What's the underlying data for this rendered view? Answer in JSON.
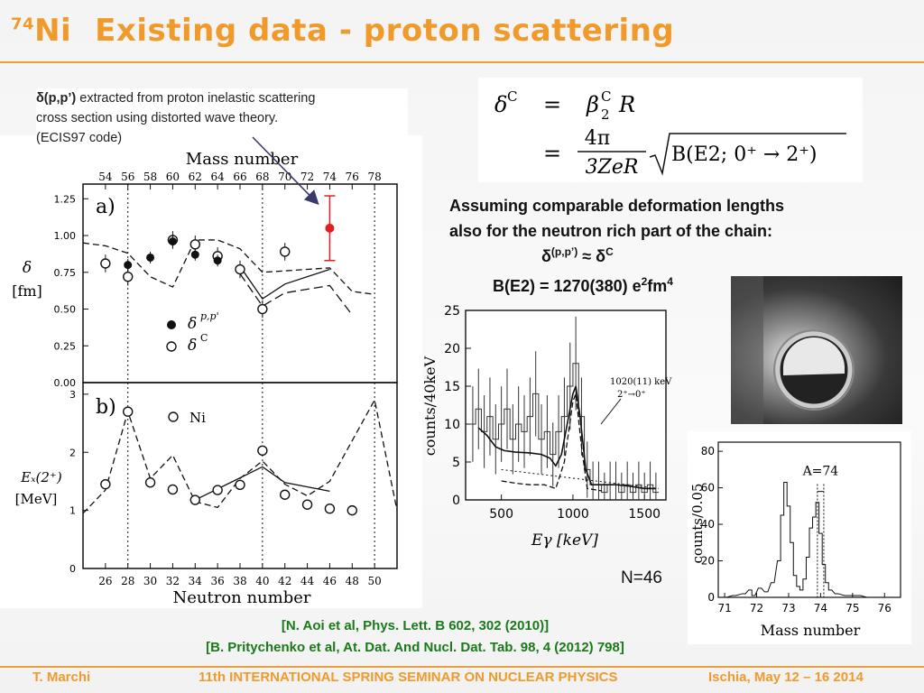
{
  "title": {
    "superscript": "74",
    "element": "Ni",
    "text": "Existing data - proton scattering"
  },
  "intro": {
    "bold": "δ(p,p’)",
    "line1": " extracted from  proton inelastic scattering",
    "line2": "cross section using distorted wave theory.",
    "line3": "(ECIS97 code)"
  },
  "formula": {
    "lhs": "δ",
    "lhs_sup": "C",
    "eq": "=",
    "rhs1": "β",
    "rhs1_sup": "C",
    "rhs1_sub": "2",
    "rhs1_tail": "R",
    "frac_num": "4π",
    "frac_den": "3ZeR",
    "sqrt_body": "B(E2; 0⁺ → 2⁺)"
  },
  "assumption": {
    "line1": "Assuming comparable deformation lengths",
    "line2": "also for the neutron rich part of the chain:",
    "approx_lhs": "δ",
    "approx_lhs_sup": "(p,p’)",
    "approx_sym": "≈",
    "approx_rhs": "δ",
    "approx_rhs_sup": "C"
  },
  "be2": {
    "text": "B(E2) = 1270(380) e",
    "sup1": "2",
    "mid": "fm",
    "sup2": "4"
  },
  "n46_label": "N=46",
  "references": [
    "[N. Aoi et al, Phys. Lett. B 602, 302 (2010)]",
    "[B. Pritychenko et al, At. Dat. And  Nucl. Dat. Tab. 98, 4 (2012) 798]"
  ],
  "footer": {
    "author": "T. Marchi",
    "event": "11th INTERNATIONAL SPRING SEMINAR ON NUCLEAR  PHYSICS",
    "place": "Ischia, May 12 – 16 2014"
  },
  "colors": {
    "accent": "#ef9a2a",
    "refs": "#1a7a1a",
    "highlight": "#e02020"
  },
  "chart_data": [
    {
      "type": "scatter",
      "panel": "a)",
      "top_axis_label": "Mass number",
      "top_ticks": [
        "54",
        "56",
        "58",
        "60",
        "62",
        "64",
        "66",
        "68",
        "70",
        "72",
        "74",
        "76",
        "78"
      ],
      "ylabel": "δ [fm]",
      "yticks": [
        "1.25",
        "1.00",
        "0.75",
        "0.50",
        "0.25",
        "0.00"
      ],
      "ylim": [
        0,
        1.35
      ],
      "xlim": [
        24,
        52
      ],
      "legend": [
        {
          "symbol": "filled",
          "label": "δ",
          "sup": "p,p'"
        },
        {
          "symbol": "open",
          "label": "δ",
          "sup": "C"
        }
      ],
      "series": [
        {
          "name": "δ p,p'",
          "points": [
            [
              28,
              0.8
            ],
            [
              30,
              0.85
            ],
            [
              32,
              0.96
            ],
            [
              34,
              0.87
            ],
            [
              36,
              0.83
            ]
          ]
        },
        {
          "name": "δ C",
          "points": [
            [
              26,
              0.81
            ],
            [
              28,
              0.72
            ],
            [
              32,
              0.97
            ],
            [
              34,
              0.94
            ],
            [
              36,
              0.86
            ],
            [
              38,
              0.77
            ],
            [
              40,
              0.5
            ],
            [
              42,
              0.89
            ]
          ]
        },
        {
          "name": "74Ni",
          "points": [
            [
              46,
              1.05
            ]
          ],
          "err": 0.22
        }
      ],
      "lines": {
        "solid": [
          [
            38,
            0.79
          ],
          [
            40,
            0.57
          ],
          [
            42,
            0.67
          ],
          [
            46,
            0.77
          ]
        ],
        "dashed": [
          [
            24,
            0.95
          ],
          [
            26,
            0.93
          ],
          [
            28,
            0.88
          ],
          [
            30,
            0.72
          ],
          [
            32,
            0.65
          ],
          [
            34,
            0.97
          ],
          [
            36,
            0.97
          ],
          [
            38,
            0.91
          ],
          [
            40,
            0.75
          ],
          [
            42,
            0.76
          ],
          [
            46,
            0.78
          ],
          [
            48,
            0.62
          ],
          [
            50,
            0.6
          ]
        ],
        "dashed2": [
          [
            38,
            0.74
          ],
          [
            40,
            0.52
          ],
          [
            42,
            0.61
          ],
          [
            46,
            0.66
          ],
          [
            48,
            0.46
          ]
        ]
      }
    },
    {
      "type": "scatter",
      "panel": "b)",
      "xlabel": "Neutron number",
      "xticks": [
        "26",
        "28",
        "30",
        "32",
        "34",
        "36",
        "38",
        "40",
        "42",
        "44",
        "46",
        "48",
        "50"
      ],
      "ylabel": "Eₓ(2⁺) [MeV]",
      "yticks": [
        "3",
        "2",
        "1",
        "0"
      ],
      "ylim": [
        0,
        3.2
      ],
      "xlim": [
        24,
        52
      ],
      "legend": [
        {
          "symbol": "open",
          "label": "Ni"
        }
      ],
      "series": [
        {
          "name": "Ni",
          "points": [
            [
              26,
              1.45
            ],
            [
              28,
              2.7
            ],
            [
              30,
              1.48
            ],
            [
              32,
              1.36
            ],
            [
              34,
              1.18
            ],
            [
              36,
              1.35
            ],
            [
              38,
              1.44
            ],
            [
              40,
              2.03
            ],
            [
              42,
              1.27
            ],
            [
              44,
              1.1
            ],
            [
              46,
              1.03
            ],
            [
              48,
              1.0
            ]
          ]
        }
      ],
      "lines": {
        "solid": [
          [
            34,
            1.18
          ],
          [
            40,
            1.75
          ],
          [
            42,
            1.48
          ],
          [
            46,
            1.33
          ]
        ],
        "dashed": [
          [
            24,
            0.95
          ],
          [
            26,
            1.35
          ],
          [
            28,
            2.7
          ],
          [
            30,
            1.55
          ],
          [
            32,
            1.95
          ],
          [
            34,
            1.15
          ],
          [
            36,
            1.05
          ],
          [
            38,
            1.55
          ],
          [
            40,
            1.85
          ],
          [
            42,
            1.45
          ],
          [
            44,
            1.25
          ],
          [
            46,
            1.5
          ],
          [
            50,
            2.9
          ],
          [
            52,
            1.0
          ]
        ]
      }
    },
    {
      "type": "line",
      "title": "",
      "xlabel": "E_γ [keV]",
      "ylabel": "counts/40keV",
      "xticks": [
        "500",
        "1000",
        "1500"
      ],
      "yticks": [
        "0",
        "5",
        "10",
        "15",
        "20",
        "25"
      ],
      "xlim": [
        250,
        1650
      ],
      "ylim": [
        0,
        25
      ],
      "annotation": {
        "line1": "1020(11) keV",
        "line2": "2⁺→0⁺"
      },
      "spectrum": [
        [
          300,
          10
        ],
        [
          340,
          12
        ],
        [
          380,
          9
        ],
        [
          420,
          11
        ],
        [
          460,
          8
        ],
        [
          500,
          10
        ],
        [
          540,
          12
        ],
        [
          580,
          8
        ],
        [
          620,
          10
        ],
        [
          660,
          9
        ],
        [
          700,
          11
        ],
        [
          740,
          14
        ],
        [
          780,
          8
        ],
        [
          820,
          9
        ],
        [
          860,
          6
        ],
        [
          900,
          9
        ],
        [
          940,
          11
        ],
        [
          980,
          15
        ],
        [
          1020,
          18
        ],
        [
          1060,
          11
        ],
        [
          1100,
          4
        ],
        [
          1140,
          2
        ],
        [
          1180,
          2
        ],
        [
          1220,
          1
        ],
        [
          1260,
          2
        ],
        [
          1300,
          2
        ],
        [
          1340,
          1
        ],
        [
          1380,
          2
        ],
        [
          1420,
          1
        ],
        [
          1460,
          2
        ],
        [
          1500,
          1
        ],
        [
          1540,
          2
        ],
        [
          1580,
          1
        ]
      ],
      "fit": [
        [
          340,
          9.5
        ],
        [
          400,
          8.5
        ],
        [
          460,
          7
        ],
        [
          520,
          6.5
        ],
        [
          600,
          6.3
        ],
        [
          700,
          6.2
        ],
        [
          780,
          6.0
        ],
        [
          840,
          5.5
        ],
        [
          880,
          4.5
        ],
        [
          920,
          6
        ],
        [
          960,
          10
        ],
        [
          1000,
          14
        ],
        [
          1020,
          15
        ],
        [
          1050,
          11
        ],
        [
          1090,
          4
        ],
        [
          1130,
          2
        ],
        [
          1200,
          2
        ],
        [
          1300,
          2
        ],
        [
          1400,
          1.8
        ],
        [
          1500,
          1.5
        ],
        [
          1580,
          1.5
        ]
      ],
      "fit_dashed": [
        [
          500,
          2.5
        ],
        [
          600,
          2.2
        ],
        [
          700,
          2
        ],
        [
          800,
          2
        ],
        [
          880,
          1.5
        ],
        [
          940,
          5
        ],
        [
          1000,
          13
        ],
        [
          1020,
          14
        ],
        [
          1060,
          7
        ],
        [
          1100,
          1.5
        ],
        [
          1200,
          1.2
        ]
      ]
    },
    {
      "type": "line",
      "xlabel": "Mass number",
      "ylabel": "counts/0.05",
      "xticks": [
        "71",
        "72",
        "73",
        "74",
        "75",
        "76"
      ],
      "yticks": [
        "0",
        "20",
        "40",
        "60",
        "80"
      ],
      "xlim": [
        70.8,
        76.5
      ],
      "ylim": [
        0,
        85
      ],
      "annotation": "A=74",
      "histogram": [
        [
          71.0,
          0
        ],
        [
          71.3,
          1
        ],
        [
          71.6,
          2
        ],
        [
          71.8,
          4
        ],
        [
          71.9,
          1
        ],
        [
          72.1,
          5
        ],
        [
          72.3,
          3
        ],
        [
          72.5,
          8
        ],
        [
          72.7,
          20
        ],
        [
          72.8,
          45
        ],
        [
          72.9,
          63
        ],
        [
          73.0,
          50
        ],
        [
          73.1,
          30
        ],
        [
          73.2,
          12
        ],
        [
          73.3,
          6
        ],
        [
          73.4,
          4
        ],
        [
          73.5,
          10
        ],
        [
          73.6,
          22
        ],
        [
          73.7,
          38
        ],
        [
          73.8,
          44
        ],
        [
          73.9,
          52
        ],
        [
          74.0,
          35
        ],
        [
          74.1,
          18
        ],
        [
          74.2,
          8
        ],
        [
          74.3,
          4
        ],
        [
          74.5,
          2
        ],
        [
          74.8,
          1
        ],
        [
          75.2,
          1
        ],
        [
          75.5,
          0
        ],
        [
          76.0,
          0
        ]
      ]
    }
  ]
}
